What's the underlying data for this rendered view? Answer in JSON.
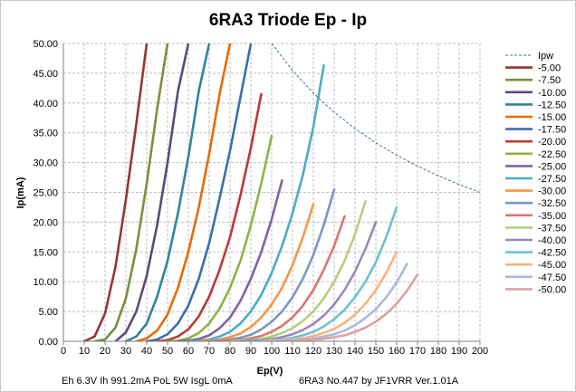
{
  "chart_data": {
    "type": "line",
    "title": "6RA3 Triode Ep - Ip",
    "xlabel": "Ep(V)",
    "ylabel": "Ip(mA)",
    "xlim": [
      0,
      200
    ],
    "ylim": [
      0,
      50
    ],
    "x_ticks": [
      "0",
      "10",
      "20",
      "30",
      "40",
      "50",
      "60",
      "70",
      "80",
      "90",
      "100",
      "110",
      "120",
      "130",
      "140",
      "150",
      "160",
      "170",
      "180",
      "190",
      "200"
    ],
    "y_ticks": [
      "0.00",
      "5.00",
      "10.00",
      "15.00",
      "20.00",
      "25.00",
      "30.00",
      "35.00",
      "40.00",
      "45.00",
      "50.00"
    ],
    "grid": "dashed",
    "legend_position": "right",
    "pdiss": {
      "name": "Ipw",
      "color": "#41719c",
      "x": [
        100,
        110,
        120,
        130,
        140,
        150,
        160,
        170,
        180,
        190,
        200
      ],
      "y": [
        50,
        45.45,
        41.67,
        38.46,
        35.71,
        33.33,
        31.25,
        29.41,
        27.78,
        26.32,
        25
      ]
    },
    "series": [
      {
        "name": "-5.00",
        "color": "#943634",
        "x": [
          10,
          15,
          20,
          25,
          30,
          35,
          40
        ],
        "y": [
          0,
          0.8,
          4.7,
          12.5,
          23.8,
          36.5,
          50
        ]
      },
      {
        "name": "-7.50",
        "color": "#76923c",
        "x": [
          15,
          20,
          25,
          30,
          35,
          40,
          45,
          50
        ],
        "y": [
          0,
          0.3,
          2.3,
          7.2,
          15.5,
          26.5,
          39,
          50
        ]
      },
      {
        "name": "-10.00",
        "color": "#5f497a",
        "x": [
          25,
          30,
          35,
          40,
          45,
          50,
          55,
          60
        ],
        "y": [
          0,
          1.5,
          5,
          11,
          19.5,
          30,
          42,
          50
        ]
      },
      {
        "name": "-12.50",
        "color": "#31859c",
        "x": [
          30,
          35,
          40,
          45,
          50,
          55,
          60,
          65,
          70
        ],
        "y": [
          0,
          0.8,
          3,
          7.5,
          13.5,
          21.5,
          31,
          42,
          50
        ]
      },
      {
        "name": "-15.00",
        "color": "#e36c09",
        "x": [
          35,
          40,
          45,
          50,
          55,
          60,
          65,
          70,
          75,
          80
        ],
        "y": [
          0,
          0.5,
          1.8,
          4.5,
          9,
          15,
          22.5,
          31.5,
          41.5,
          50
        ]
      },
      {
        "name": "-17.50",
        "color": "#3a6fb0",
        "x": [
          40,
          45,
          50,
          55,
          60,
          65,
          70,
          75,
          80,
          85,
          90
        ],
        "y": [
          0,
          0.3,
          1.2,
          3,
          6,
          10.5,
          16.5,
          24,
          32,
          41,
          50
        ]
      },
      {
        "name": "-20.00",
        "color": "#b83b37",
        "x": [
          45,
          50,
          55,
          60,
          65,
          70,
          75,
          80,
          85,
          90,
          95
        ],
        "y": [
          0,
          0.2,
          0.8,
          2,
          4.2,
          7.5,
          12,
          17.5,
          24.5,
          32.5,
          41.5
        ]
      },
      {
        "name": "-22.50",
        "color": "#8fb345",
        "x": [
          50,
          55,
          60,
          65,
          70,
          75,
          80,
          85,
          90,
          95,
          100
        ],
        "y": [
          0,
          0.1,
          0.5,
          1.4,
          3,
          5.5,
          9,
          13.5,
          19.5,
          26.5,
          34.5
        ]
      },
      {
        "name": "-25.00",
        "color": "#8064a2",
        "x": [
          55,
          60,
          65,
          70,
          75,
          80,
          85,
          90,
          95,
          100,
          105
        ],
        "y": [
          0,
          0.1,
          0.4,
          1,
          2.2,
          4,
          6.8,
          10.5,
          15,
          20.5,
          27
        ]
      },
      {
        "name": "-27.50",
        "color": "#4bacc6",
        "x": [
          60,
          65,
          70,
          75,
          80,
          85,
          90,
          95,
          100,
          105,
          110,
          115,
          120,
          125
        ],
        "y": [
          0,
          0.1,
          0.3,
          0.8,
          1.6,
          3,
          5,
          7.8,
          11.5,
          16,
          21.5,
          28,
          36,
          46.3
        ]
      },
      {
        "name": "-30.00",
        "color": "#f79646",
        "x": [
          65,
          70,
          75,
          80,
          85,
          90,
          95,
          100,
          105,
          110,
          115,
          120
        ],
        "y": [
          0,
          0.1,
          0.3,
          0.7,
          1.3,
          2.4,
          4,
          6.2,
          9,
          12.8,
          17.5,
          23
        ]
      },
      {
        "name": "-32.50",
        "color": "#7f95c5",
        "x": [
          70,
          75,
          80,
          85,
          90,
          95,
          100,
          105,
          110,
          115,
          120,
          125,
          130
        ],
        "y": [
          0,
          0.1,
          0.3,
          0.6,
          1.1,
          2,
          3.3,
          5,
          7.4,
          10.5,
          14.5,
          19.5,
          25.5
        ]
      },
      {
        "name": "-35.00",
        "color": "#d9776f",
        "x": [
          75,
          80,
          85,
          90,
          95,
          100,
          105,
          110,
          115,
          120,
          125,
          130,
          135
        ],
        "y": [
          0,
          0.1,
          0.2,
          0.5,
          0.9,
          1.6,
          2.6,
          4,
          6,
          8.6,
          12,
          16,
          21
        ]
      },
      {
        "name": "-37.50",
        "color": "#b4cf7f",
        "x": [
          80,
          85,
          90,
          95,
          100,
          105,
          110,
          115,
          120,
          125,
          130,
          135,
          140,
          145
        ],
        "y": [
          0,
          0.1,
          0.2,
          0.4,
          0.8,
          1.4,
          2.2,
          3.4,
          5,
          7.2,
          10,
          13.5,
          18,
          23.5
        ]
      },
      {
        "name": "-40.00",
        "color": "#9c88ba",
        "x": [
          85,
          90,
          95,
          100,
          105,
          110,
          115,
          120,
          125,
          130,
          135,
          140,
          145,
          150
        ],
        "y": [
          0,
          0.1,
          0.2,
          0.4,
          0.7,
          1.2,
          1.9,
          2.9,
          4.3,
          6.2,
          8.6,
          11.7,
          15.5,
          20
        ]
      },
      {
        "name": "-42.50",
        "color": "#6cc0d4",
        "x": [
          90,
          95,
          100,
          105,
          110,
          115,
          120,
          125,
          130,
          135,
          140,
          145,
          150,
          155,
          160
        ],
        "y": [
          0,
          0.1,
          0.2,
          0.3,
          0.6,
          1,
          1.6,
          2.5,
          3.7,
          5.3,
          7.4,
          10,
          13.3,
          17.5,
          22.5
        ]
      },
      {
        "name": "-45.00",
        "color": "#f9b27d",
        "x": [
          95,
          100,
          105,
          110,
          115,
          120,
          125,
          130,
          135,
          140,
          145,
          150,
          155,
          160
        ],
        "y": [
          0,
          0.1,
          0.2,
          0.3,
          0.5,
          0.9,
          1.4,
          2.1,
          3.1,
          4.5,
          6.3,
          8.6,
          11.5,
          15
        ]
      },
      {
        "name": "-47.50",
        "color": "#a9b9dc",
        "x": [
          100,
          105,
          110,
          115,
          120,
          125,
          130,
          135,
          140,
          145,
          150,
          155,
          160,
          165
        ],
        "y": [
          0,
          0.1,
          0.2,
          0.3,
          0.5,
          0.8,
          1.2,
          1.8,
          2.7,
          3.9,
          5.4,
          7.4,
          9.9,
          13
        ]
      },
      {
        "name": "-50.00",
        "color": "#dda2a0",
        "x": [
          105,
          110,
          115,
          120,
          125,
          130,
          135,
          140,
          145,
          150,
          155,
          160,
          165,
          170
        ],
        "y": [
          0,
          0.1,
          0.2,
          0.3,
          0.4,
          0.7,
          1,
          1.6,
          2.3,
          3.3,
          4.6,
          6.3,
          8.5,
          11.2
        ]
      }
    ],
    "footer_left": "Eh  6.3V Ih  991.2mA PoL  5W IsgL  0mA",
    "footer_right": "6RA3 No.447  by JF1VRR Ver.1.01A"
  }
}
